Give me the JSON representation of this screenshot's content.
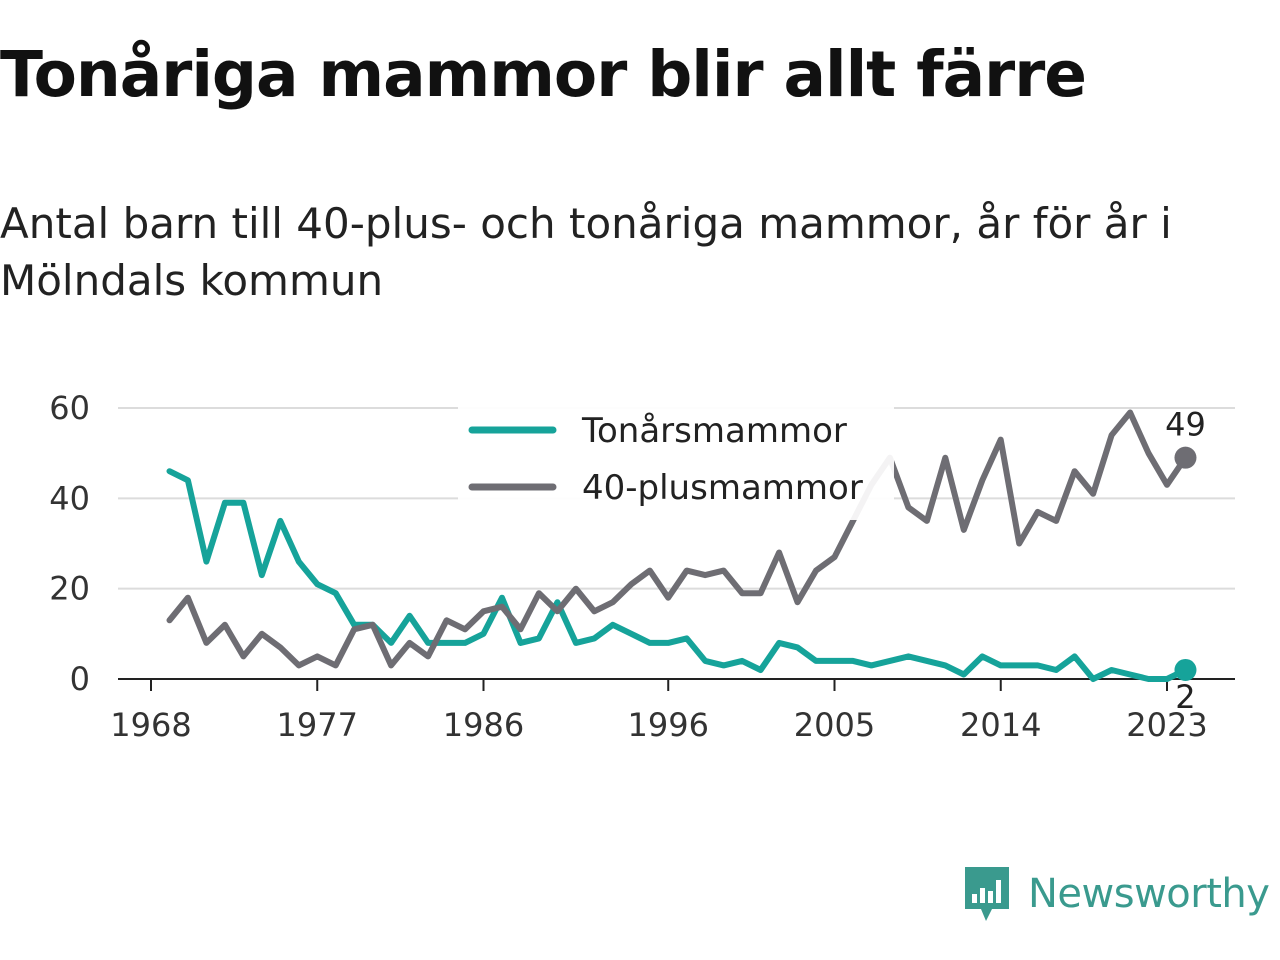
{
  "header": {
    "title": "Tonåriga mammor blir allt färre",
    "subtitle": "Antal barn till 40-plus- och tonåriga mammor, år för år i Mölndals kommun"
  },
  "brand": {
    "name": "Newsworthy",
    "color": "#3a9a8e",
    "icon": "newsworthy-logo-icon"
  },
  "chart_data": {
    "type": "line",
    "title": "Tonåriga mammor blir allt färre",
    "subtitle": "Antal barn till 40-plus- och tonåriga mammor, år för år i Mölndals kommun",
    "xlabel": "",
    "ylabel": "",
    "xlim": [
      1968,
      2024
    ],
    "ylim": [
      0,
      60
    ],
    "x_ticks": [
      1968,
      1977,
      1986,
      1996,
      2005,
      2014,
      2023
    ],
    "y_ticks": [
      0,
      20,
      40,
      60
    ],
    "grid": true,
    "legend_position": "top-center",
    "x": [
      1969,
      1970,
      1971,
      1972,
      1973,
      1974,
      1975,
      1976,
      1977,
      1978,
      1979,
      1980,
      1981,
      1982,
      1983,
      1984,
      1985,
      1986,
      1987,
      1988,
      1989,
      1990,
      1991,
      1992,
      1993,
      1994,
      1995,
      1996,
      1997,
      1998,
      1999,
      2000,
      2001,
      2002,
      2003,
      2004,
      2005,
      2006,
      2007,
      2008,
      2009,
      2010,
      2011,
      2012,
      2013,
      2014,
      2015,
      2016,
      2017,
      2018,
      2019,
      2020,
      2021,
      2022,
      2023,
      2024
    ],
    "series": [
      {
        "name": "Tonårsmammor",
        "color": "#16a39a",
        "values": [
          46,
          44,
          26,
          39,
          39,
          23,
          35,
          26,
          21,
          19,
          12,
          12,
          8,
          14,
          8,
          8,
          8,
          10,
          18,
          8,
          9,
          17,
          8,
          9,
          12,
          10,
          8,
          8,
          9,
          4,
          3,
          4,
          2,
          8,
          7,
          4,
          4,
          4,
          3,
          4,
          5,
          4,
          3,
          1,
          5,
          3,
          3,
          3,
          2,
          5,
          0,
          2,
          1,
          0,
          0,
          2
        ],
        "end_label": "2"
      },
      {
        "name": "40-plusmammor",
        "color": "#6e6d73",
        "values": [
          13,
          18,
          8,
          12,
          5,
          10,
          7,
          3,
          5,
          3,
          11,
          12,
          3,
          8,
          5,
          13,
          11,
          15,
          16,
          11,
          19,
          15,
          20,
          15,
          17,
          21,
          24,
          18,
          24,
          23,
          24,
          19,
          19,
          28,
          17,
          24,
          27,
          35,
          43,
          49,
          38,
          35,
          49,
          33,
          44,
          53,
          30,
          37,
          35,
          46,
          41,
          54,
          59,
          50,
          43,
          49
        ],
        "end_label": "49"
      }
    ]
  }
}
